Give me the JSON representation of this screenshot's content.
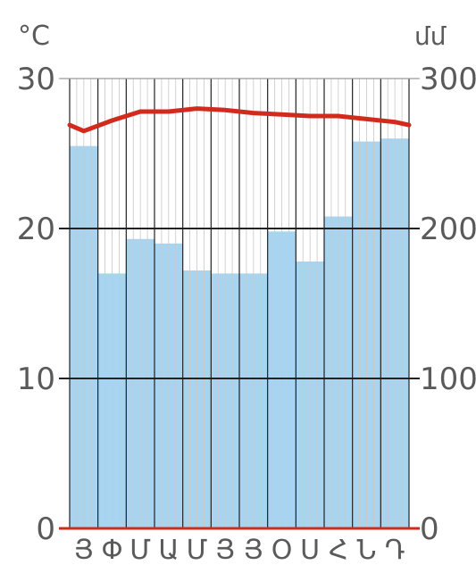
{
  "chart_data": {
    "type": "bar",
    "left_unit": "°C",
    "right_unit": "մմ",
    "categories": [
      "Յ",
      "Փ",
      "Մ",
      "Ա",
      "Մ",
      "Յ",
      "Յ",
      "Օ",
      "Ս",
      "Հ",
      "Ն",
      "Դ"
    ],
    "series": [
      {
        "type": "bar",
        "axis": "right",
        "color": "#a8d4f0",
        "values": [
          255,
          170,
          193,
          190,
          172,
          170,
          170,
          198,
          178,
          208,
          258,
          260
        ]
      },
      {
        "type": "line",
        "axis": "left",
        "color": "#d22b1e",
        "values": [
          26.5,
          27.2,
          27.8,
          27.8,
          28.0,
          27.9,
          27.7,
          27.6,
          27.5,
          27.5,
          27.3,
          27.1
        ]
      }
    ],
    "left_axis": {
      "range": [
        0,
        30
      ],
      "ticks": [
        0,
        10,
        20,
        30
      ]
    },
    "right_axis": {
      "range": [
        0,
        300
      ],
      "ticks": [
        0,
        100,
        200,
        300
      ]
    },
    "grid": true
  },
  "colors": {
    "bar": "#a8d4f0",
    "line": "#d22b1e",
    "grid_major": "#222222",
    "grid_minor": "#c8c8c8",
    "baseline": "#d22b1e"
  }
}
